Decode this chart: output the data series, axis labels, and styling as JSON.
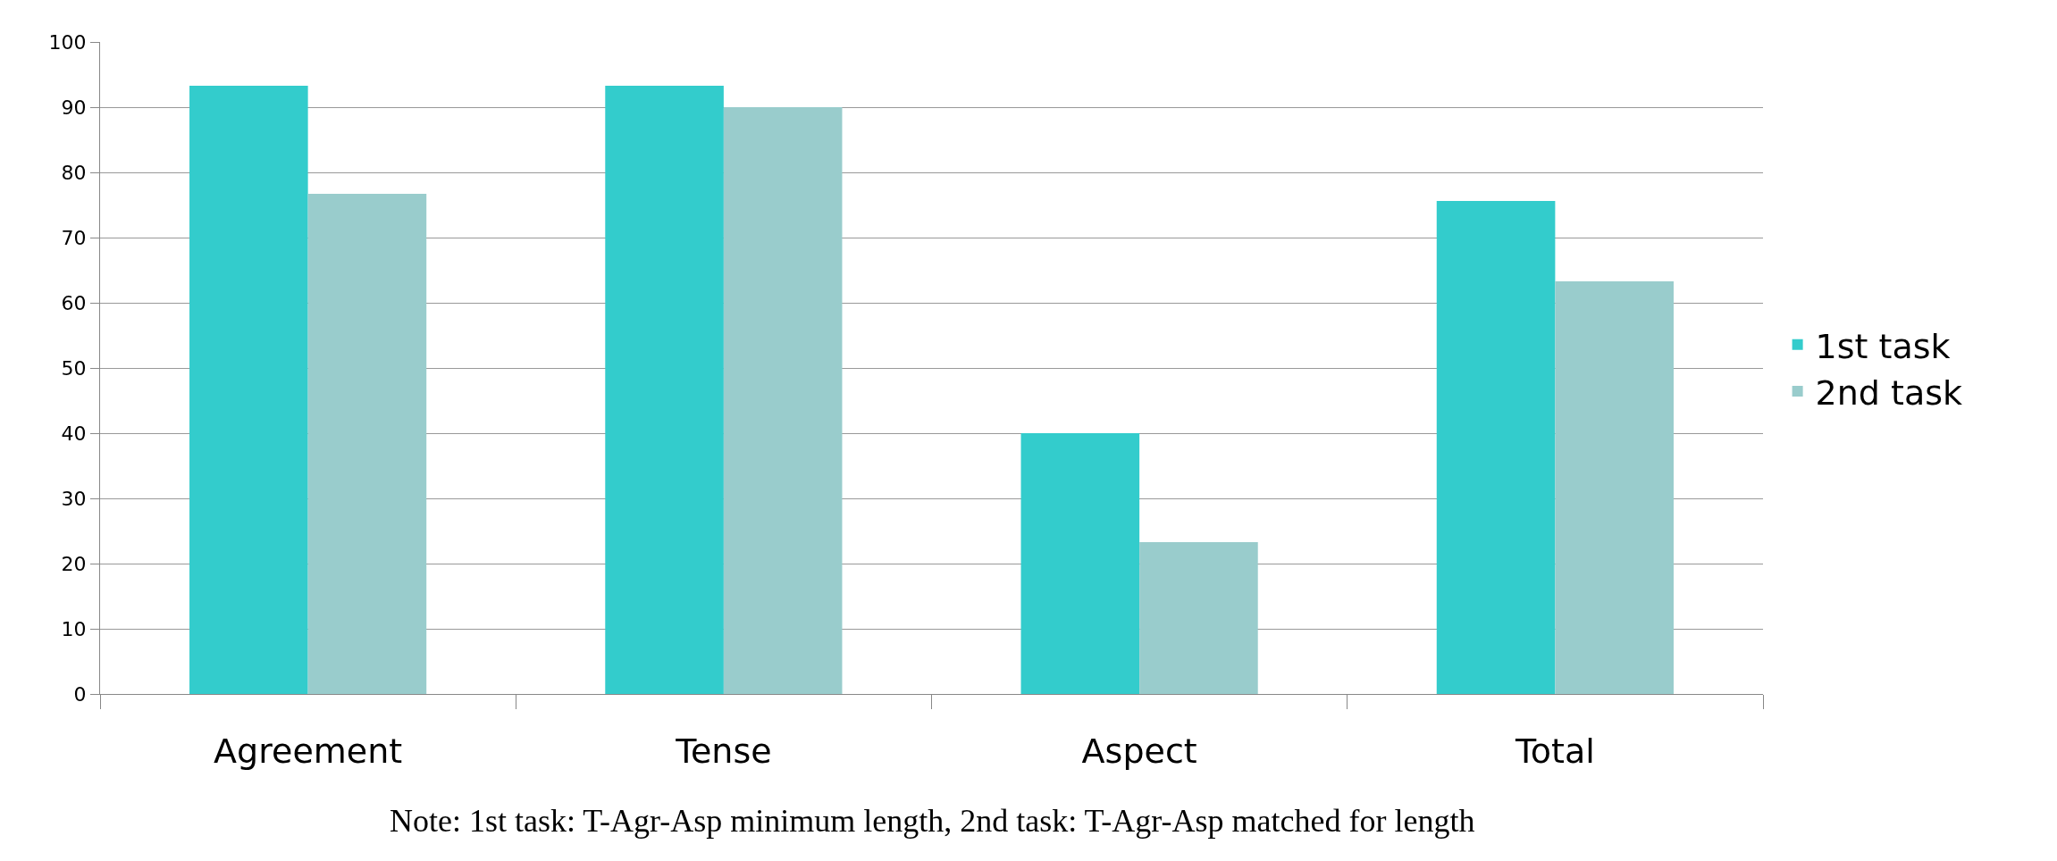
{
  "chart_data": {
    "type": "bar",
    "categories": [
      "Agreement",
      "Tense",
      "Aspect",
      "Total"
    ],
    "series": [
      {
        "name": "1st task",
        "color": "#33cccc",
        "values": [
          93.3,
          93.3,
          40,
          75.6
        ]
      },
      {
        "name": "2nd task",
        "color": "#99cccc",
        "values": [
          76.7,
          90,
          23.3,
          63.3
        ]
      }
    ],
    "ylim": [
      0,
      100
    ],
    "yticks": [
      0,
      10,
      20,
      30,
      40,
      50,
      60,
      70,
      80,
      90,
      100
    ],
    "grid": "y",
    "legend": "right",
    "annotations": [
      "Note: 1st task: T-Agr-Asp minimum length, 2nd task: T-Agr-Asp matched for length"
    ]
  }
}
